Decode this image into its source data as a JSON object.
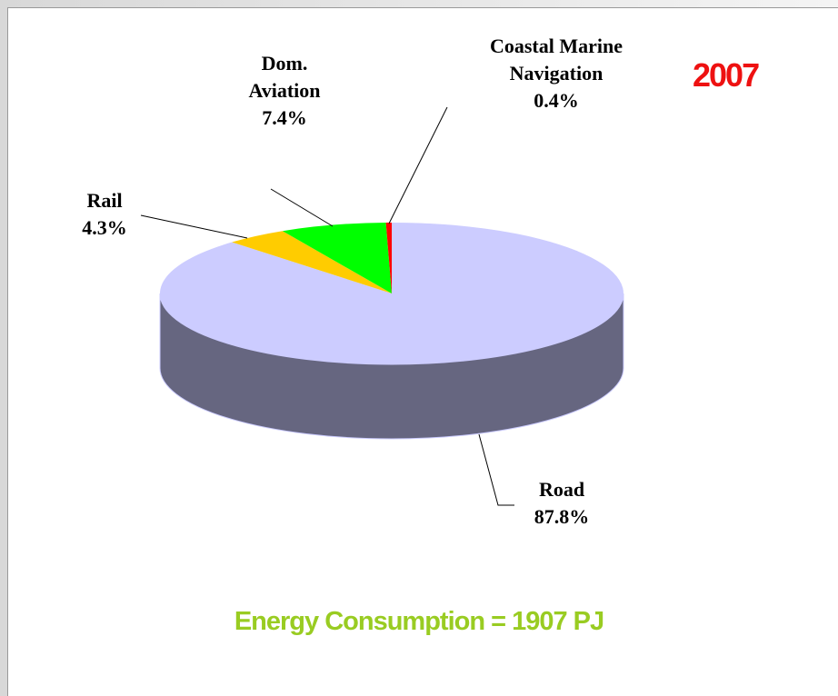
{
  "chart_data": {
    "type": "pie3d",
    "categories": [
      "Road",
      "Rail",
      "Dom. Aviation",
      "Coastal Marine Navigation"
    ],
    "values": [
      87.8,
      4.3,
      7.4,
      0.4
    ],
    "value_labels": [
      "87.8%",
      "4.3%",
      "7.4%",
      "0.4%"
    ],
    "colors": [
      "#ccccff",
      "#ffcc00",
      "#00ff00",
      "#ff0000"
    ],
    "annotation": "2007",
    "footer": "Energy Consumption = 1907 PJ"
  }
}
